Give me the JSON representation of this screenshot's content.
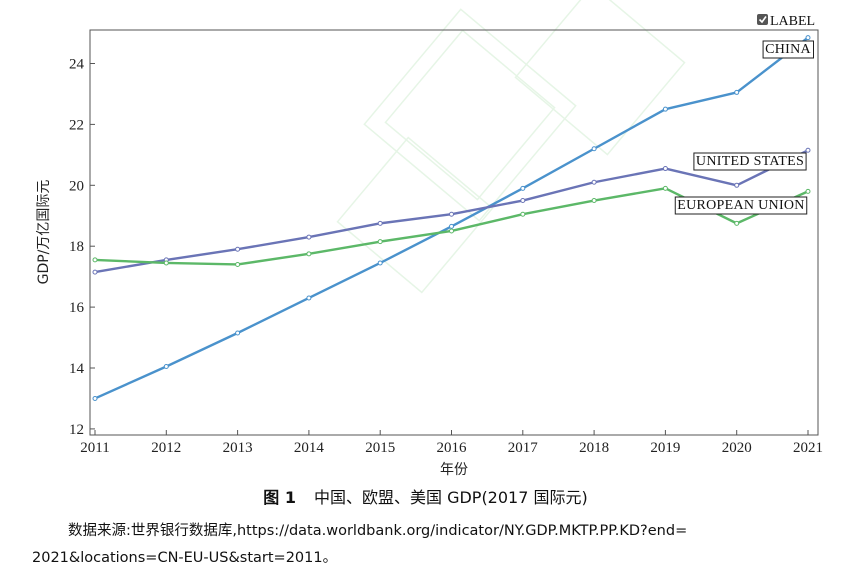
{
  "chart_data": {
    "type": "line",
    "xlabel": "年份",
    "ylabel": "GDP/万亿国际元",
    "x": [
      2011,
      2012,
      2013,
      2014,
      2015,
      2016,
      2017,
      2018,
      2019,
      2020,
      2021
    ],
    "xlim": [
      2011,
      2021
    ],
    "ylim": [
      11.8,
      25.1
    ],
    "yticks": [
      12,
      14,
      16,
      18,
      20,
      22,
      24
    ],
    "grid": false,
    "legend": {
      "position": "top-right",
      "label": "LABEL"
    },
    "series": [
      {
        "name": "CHINA",
        "color": "#4a92cc",
        "values": [
          13.0,
          14.05,
          15.15,
          16.3,
          17.45,
          18.65,
          19.9,
          21.2,
          22.5,
          23.05,
          24.85
        ]
      },
      {
        "name": "UNITED STATES",
        "color": "#6a74b6",
        "values": [
          17.15,
          17.55,
          17.9,
          18.3,
          18.75,
          19.05,
          19.5,
          20.1,
          20.55,
          20.0,
          21.15
        ]
      },
      {
        "name": "EUROPEAN UNION",
        "color": "#5cb868",
        "values": [
          17.55,
          17.45,
          17.4,
          17.75,
          18.15,
          18.5,
          19.05,
          19.5,
          19.9,
          18.75,
          19.8
        ]
      }
    ]
  },
  "caption": {
    "figure_number": "图 1",
    "title": "中国、欧盟、美国 GDP(2017 国际元)"
  },
  "source": {
    "line1": "数据来源:世界银行数据库,https://data.worldbank.org/indicator/NY.GDP.MKTP.PP.KD?end=",
    "line2": "2021&locations=CN-EU-US&start=2011。"
  }
}
